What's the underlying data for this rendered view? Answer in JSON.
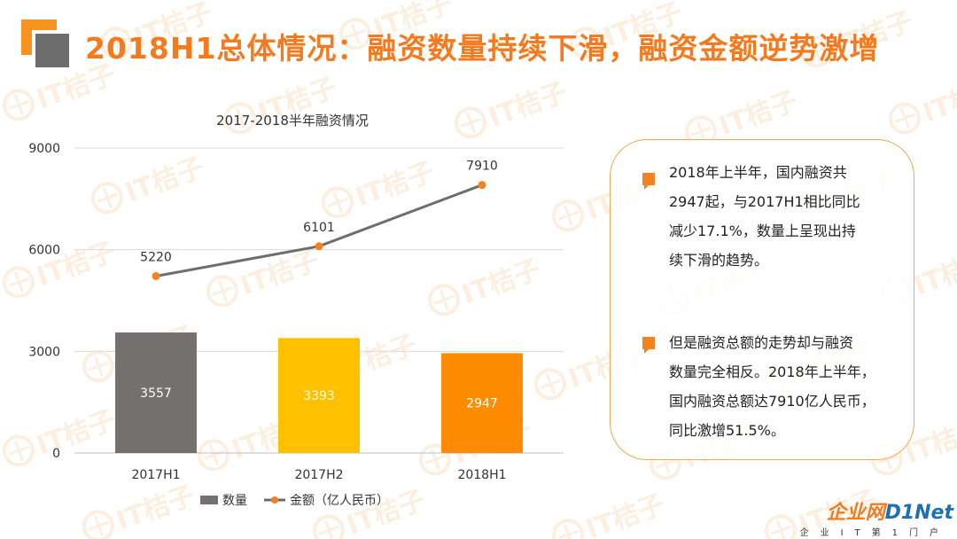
{
  "header": {
    "title": "2018H1总体情况：融资数量持续下滑，融资金额逆势激增"
  },
  "watermark": {
    "text": "IT桔子"
  },
  "colors": {
    "accent": "#f47a1f",
    "bar_2017H1": "#747070",
    "bar_2017H2": "#ffc000",
    "bar_2018H1": "#ff8c00",
    "line": "#6d6d6d",
    "line_marker": "#f58220"
  },
  "chart_data": {
    "type": "bar",
    "title": "2017-2018半年融资情况",
    "categories": [
      "2017H1",
      "2017H2",
      "2018H1"
    ],
    "ylim": [
      0,
      9000
    ],
    "yticks": [
      0,
      3000,
      6000,
      9000
    ],
    "grid": true,
    "legend_position": "bottom",
    "series": [
      {
        "name": "数量",
        "kind": "bar",
        "values": [
          3557,
          3393,
          2947
        ],
        "colors": [
          "#747070",
          "#ffc000",
          "#ff8c00"
        ]
      },
      {
        "name": "金额（亿人民币）",
        "kind": "line",
        "values": [
          5220,
          6101,
          7910
        ],
        "color": "#6d6d6d",
        "marker_color": "#f58220"
      }
    ]
  },
  "info": {
    "items": [
      {
        "lines": [
          "2018年上半年，国内融资共",
          "2947起，与2017H1相比同比",
          "减少17.1%，数量上呈现出持",
          "续下滑的趋势。"
        ]
      },
      {
        "lines": [
          "但是融资总额的走势却与融资",
          "数量完全相反。2018年上半年，",
          "国内融资总额达7910亿人民币，",
          "同比激增51.5%。"
        ]
      }
    ]
  },
  "footer": {
    "brand_part1": "企业网",
    "brand_part2": "D1Net",
    "brand_sub": "企业IT第1门户"
  }
}
